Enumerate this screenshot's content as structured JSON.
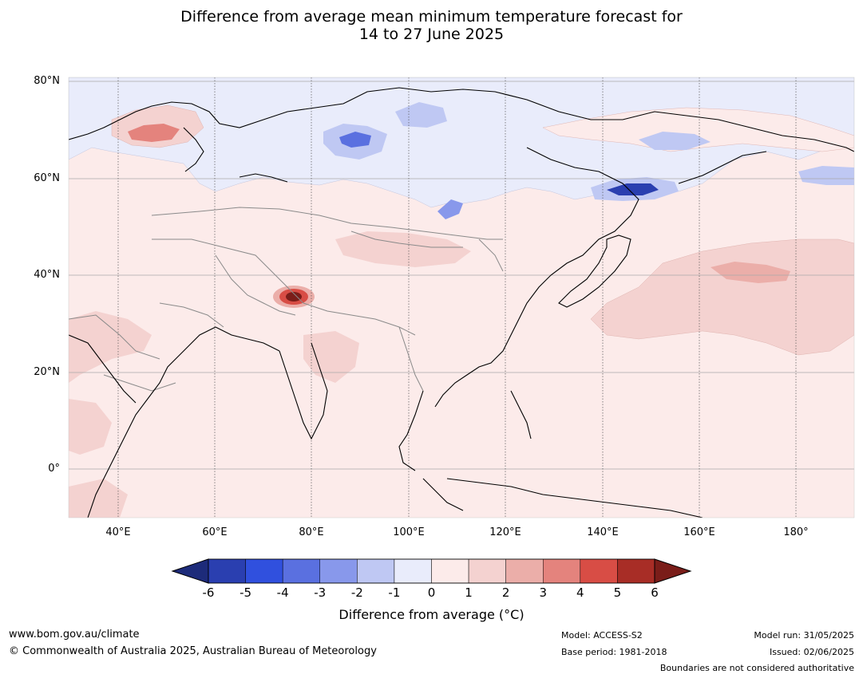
{
  "title": {
    "line1": "Difference from average mean minimum temperature forecast for",
    "line2": "14 to 27 June 2025"
  },
  "map": {
    "lat_ticks": [
      "80°N",
      "60°N",
      "40°N",
      "20°N",
      "0°"
    ],
    "lon_ticks": [
      "40°E",
      "60°E",
      "80°E",
      "100°E",
      "120°E",
      "140°E",
      "160°E",
      "180°"
    ]
  },
  "legend": {
    "title": "Difference from average (°C)",
    "tick_labels": [
      "-6",
      "-5",
      "-4",
      "-3",
      "-2",
      "-1",
      "0",
      "1",
      "2",
      "3",
      "4",
      "5",
      "6"
    ],
    "colors": [
      "#1d2b7a",
      "#2a3fb0",
      "#3050de",
      "#5a70e0",
      "#8898eb",
      "#bfc8f3",
      "#e9ecfb",
      "#fcebea",
      "#f4d2d0",
      "#ebaea9",
      "#e4837d",
      "#d84d45",
      "#a82d26",
      "#7a1d19"
    ]
  },
  "footer": {
    "url": "www.bom.gov.au/climate",
    "copyright": "© Commonwealth of Australia 2025, Australian Bureau of Meteorology",
    "model": "Model: ACCESS-S2",
    "base_period": "Base period: 1981-2018",
    "model_run": "Model run: 31/05/2025",
    "issued": "Issued: 02/06/2025",
    "disclaimer": "Boundaries are not considered authoritative"
  }
}
